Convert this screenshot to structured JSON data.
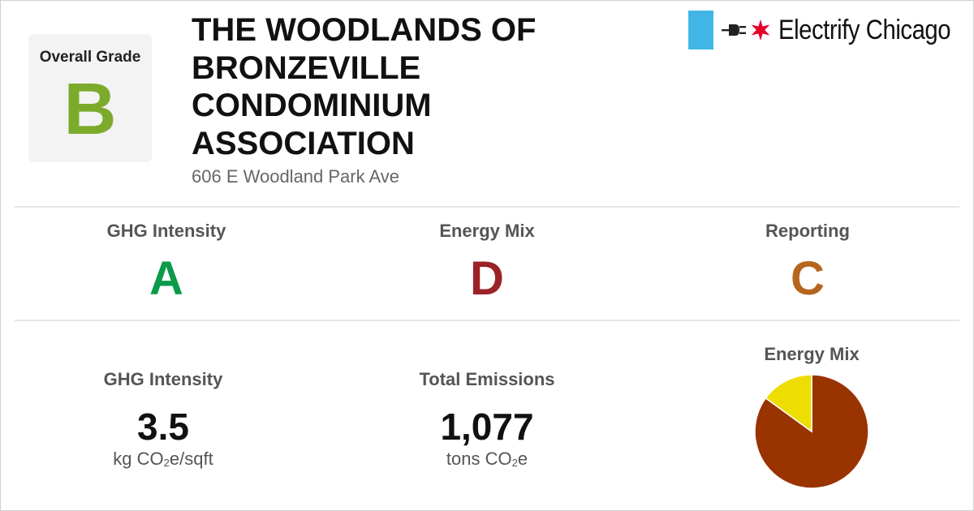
{
  "overall": {
    "label": "Overall Grade",
    "grade": "B",
    "grade_color": "#7cab2c"
  },
  "building": {
    "name": "THE WOODLANDS OF BRONZEVILLE CONDOMINIUM ASSOCIATION",
    "address": "606 E Woodland Park Ave"
  },
  "logo": {
    "brand": "Electrify Chicago",
    "flag_color": "#41b6e6",
    "star_color": "#e4002b",
    "icons": [
      "plug-icon",
      "star-icon"
    ]
  },
  "subgrades": [
    {
      "label": "GHG Intensity",
      "grade": "A",
      "color": "#0a9a4a"
    },
    {
      "label": "Energy Mix",
      "grade": "D",
      "color": "#9b2226"
    },
    {
      "label": "Reporting",
      "grade": "C",
      "color": "#b5651d"
    }
  ],
  "metrics": {
    "ghg_intensity": {
      "label": "GHG Intensity",
      "value": "3.5",
      "unit_pre": "kg CO",
      "unit_sub": "2",
      "unit_post": "e/sqft"
    },
    "total_emissions": {
      "label": "Total Emissions",
      "value": "1,077",
      "unit_pre": "tons CO",
      "unit_sub": "2",
      "unit_post": "e"
    }
  },
  "energy_mix": {
    "label": "Energy Mix"
  },
  "chart_data": {
    "type": "pie",
    "title": "Energy Mix",
    "values": [
      85,
      15
    ],
    "colors": [
      "#993300",
      "#eedd00"
    ]
  }
}
